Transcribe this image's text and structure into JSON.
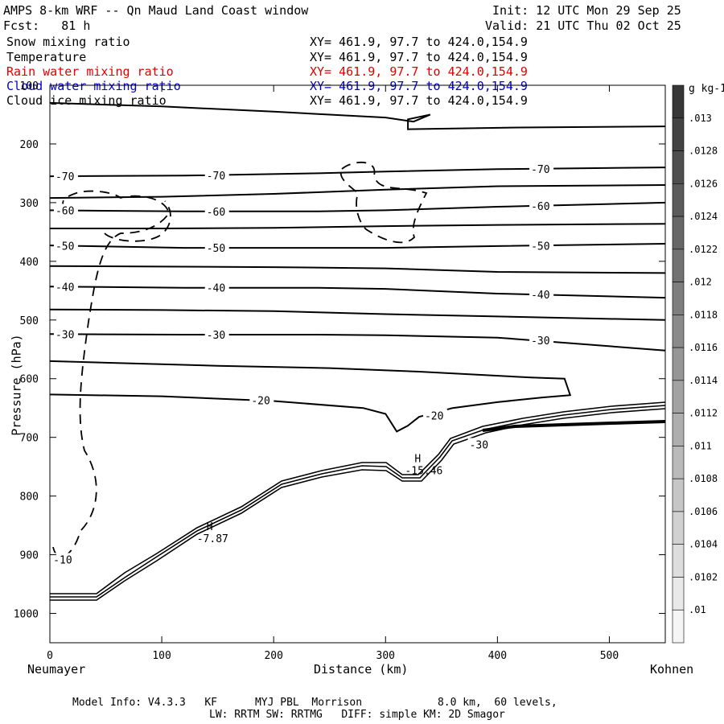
{
  "header": {
    "title": "AMPS 8-km WRF -- Qn Maud Land Coast window",
    "init": "Init: 12 UTC Mon 29 Sep 25",
    "fcst": "Fcst:   81 h",
    "valid": "Valid: 21 UTC Thu 02 Oct 25",
    "fields": [
      {
        "name": "Snow mixing ratio",
        "xy": "XY= 461.9, 97.7 to 424.0,154.9",
        "color": "#000000"
      },
      {
        "name": "Temperature",
        "xy": "XY= 461.9, 97.7 to 424.0,154.9",
        "color": "#000000"
      },
      {
        "name": "Rain water mixing ratio",
        "xy": "XY= 461.9, 97.7 to 424.0,154.9",
        "color": "#e00000"
      },
      {
        "name": "Cloud water mixing ratio",
        "xy": "XY= 461.9, 97.7 to 424.0,154.9",
        "color": "#0000c8"
      },
      {
        "name": "Cloud ice mixing ratio",
        "xy": "XY= 461.9, 97.7 to 424.0,154.9",
        "color": "#000000"
      }
    ]
  },
  "chart_data": {
    "type": "line",
    "xlabel": "Distance (km)",
    "ylabel": "Pressure (hPa)",
    "xlim": [
      0,
      550
    ],
    "ylim": [
      1050,
      100
    ],
    "x_ticks": [
      0,
      100,
      200,
      300,
      400,
      500
    ],
    "y_ticks": [
      100,
      200,
      300,
      400,
      500,
      600,
      700,
      800,
      900,
      1000
    ],
    "left_endpoint": "Neumayer",
    "right_endpoint": "Kohnen",
    "temperature_isotherms": [
      {
        "label": "-70",
        "points": [
          [
            0,
            255
          ],
          [
            120,
            254
          ],
          [
            240,
            250
          ],
          [
            300,
            247
          ],
          [
            400,
            243
          ],
          [
            550,
            240
          ]
        ]
      },
      {
        "label": "-60",
        "points": [
          [
            0,
            313
          ],
          [
            120,
            315
          ],
          [
            240,
            315
          ],
          [
            300,
            313
          ],
          [
            400,
            307
          ],
          [
            550,
            300
          ]
        ]
      },
      {
        "label": "-50",
        "points": [
          [
            0,
            373
          ],
          [
            120,
            377
          ],
          [
            240,
            377
          ],
          [
            300,
            377
          ],
          [
            400,
            374
          ],
          [
            550,
            370
          ]
        ]
      },
      {
        "label": "-40",
        "points": [
          [
            0,
            443
          ],
          [
            120,
            445
          ],
          [
            240,
            445
          ],
          [
            300,
            447
          ],
          [
            400,
            455
          ],
          [
            550,
            462
          ]
        ]
      },
      {
        "label": "-30",
        "points": [
          [
            0,
            524
          ],
          [
            120,
            525
          ],
          [
            240,
            525
          ],
          [
            300,
            526
          ],
          [
            400,
            530
          ],
          [
            550,
            552
          ]
        ]
      },
      {
        "label": "-20",
        "points": [
          [
            0,
            627
          ],
          [
            100,
            630
          ],
          [
            200,
            638
          ],
          [
            280,
            650
          ],
          [
            300,
            660
          ],
          [
            310,
            690
          ],
          [
            320,
            680
          ],
          [
            330,
            665
          ],
          [
            360,
            650
          ],
          [
            400,
            640
          ],
          [
            440,
            632
          ],
          [
            465,
            628
          ],
          [
            460,
            600
          ],
          [
            430,
            598
          ],
          [
            330,
            588
          ],
          [
            250,
            582
          ],
          [
            150,
            578
          ],
          [
            0,
            570
          ]
        ]
      }
    ],
    "extra_isotherms_unlabeled": [
      {
        "points": [
          [
            0,
            130
          ],
          [
            100,
            136
          ],
          [
            200,
            145
          ],
          [
            300,
            155
          ],
          [
            325,
            162
          ],
          [
            340,
            150
          ],
          [
            320,
            158
          ],
          [
            320,
            175
          ],
          [
            420,
            172
          ],
          [
            550,
            170
          ]
        ]
      },
      {
        "points": [
          [
            0,
            292
          ],
          [
            100,
            290
          ],
          [
            200,
            285
          ],
          [
            300,
            278
          ],
          [
            400,
            272
          ],
          [
            550,
            270
          ]
        ]
      },
      {
        "points": [
          [
            0,
            344
          ],
          [
            100,
            344
          ],
          [
            200,
            343
          ],
          [
            300,
            340
          ],
          [
            400,
            338
          ],
          [
            550,
            336
          ]
        ]
      },
      {
        "points": [
          [
            0,
            408
          ],
          [
            100,
            409
          ],
          [
            200,
            410
          ],
          [
            300,
            412
          ],
          [
            400,
            418
          ],
          [
            550,
            420
          ]
        ]
      },
      {
        "points": [
          [
            0,
            482
          ],
          [
            100,
            483
          ],
          [
            200,
            485
          ],
          [
            300,
            490
          ],
          [
            400,
            494
          ],
          [
            550,
            500
          ]
        ]
      }
    ],
    "highs": [
      {
        "label": "H",
        "value": "-7.87",
        "x": 140,
        "p": 858
      },
      {
        "label": "H",
        "value": "-15.46",
        "x": 326,
        "p": 742
      }
    ],
    "annotations": [
      "-70",
      "-60",
      "-50",
      "-40",
      "-30",
      "-20",
      "-10",
      "-30",
      "-20"
    ],
    "colorbar": {
      "unit": "g kg-1",
      "labels": [
        ".013",
        ".0128",
        ".0126",
        ".0124",
        ".0122",
        ".012",
        ".0118",
        ".0116",
        ".0114",
        ".0112",
        ".011",
        ".0108",
        ".0106",
        ".0104",
        ".0102",
        ".01"
      ]
    }
  },
  "footer": {
    "line1": "Model Info: V4.3.3   KF      MYJ PBL  Morrison            8.0 km,  60 levels,",
    "line2": "LW: RRTM SW: RRTMG   DIFF: simple KM: 2D Smagor"
  }
}
